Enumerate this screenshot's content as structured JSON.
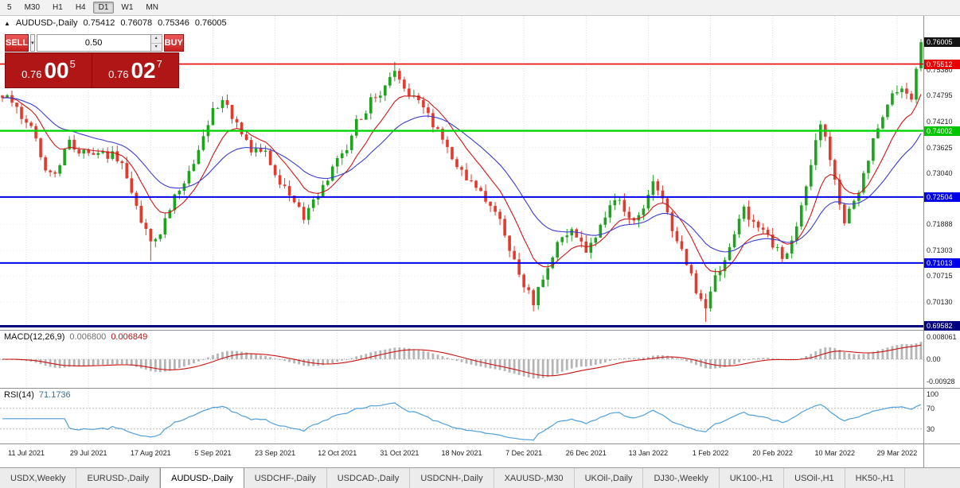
{
  "toolbar": {
    "timeframes": [
      "5",
      "M30",
      "H1",
      "H4",
      "D1",
      "W1",
      "MN"
    ],
    "active": "D1"
  },
  "header": {
    "marker": "▲",
    "title": "AUDUSD-,Daily",
    "open": "0.75412",
    "high": "0.76078",
    "low": "0.75346",
    "close": "0.76005"
  },
  "trade_panel": {
    "sell_label": "SELL",
    "buy_label": "BUY",
    "volume": "0.50",
    "dropdown_glyph": "▾",
    "spin_up_glyph": "▴",
    "spin_down_glyph": "▾",
    "sell_price": {
      "prefix": "0.76",
      "big": "00",
      "sup": "5"
    },
    "buy_price": {
      "prefix": "0.76",
      "big": "02",
      "sup": "7"
    }
  },
  "price_axis": {
    "grid_labels": [
      {
        "text": "0.75380",
        "price": 0.7538
      },
      {
        "text": "0.74795",
        "price": 0.74795
      },
      {
        "text": "0.74210",
        "price": 0.7421
      },
      {
        "text": "0.73625",
        "price": 0.73625
      },
      {
        "text": "0.73040",
        "price": 0.7304
      },
      {
        "text": "0.71888",
        "price": 0.71888
      },
      {
        "text": "0.71303",
        "price": 0.71303
      },
      {
        "text": "0.70715",
        "price": 0.70715
      },
      {
        "text": "0.70130",
        "price": 0.7013
      }
    ],
    "badges": [
      {
        "text": "0.76005",
        "price": 0.76005,
        "bg": "#141414"
      },
      {
        "text": "0.75512",
        "price": 0.75512,
        "bg": "#e80000"
      },
      {
        "text": "0.74002",
        "price": 0.74002,
        "bg": "#00c400"
      },
      {
        "text": "0.72504",
        "price": 0.72504,
        "bg": "#0000e8"
      },
      {
        "text": "0.71013",
        "price": 0.71013,
        "bg": "#0000e8"
      },
      {
        "text": "0.69582",
        "price": 0.69582,
        "bg": "#000080"
      }
    ]
  },
  "macd": {
    "name": "MACD(12,26,9)",
    "value_main": "0.006800",
    "value_signal": "0.006849",
    "axis": [
      "0.008061",
      "0.00",
      "-0.00928"
    ]
  },
  "rsi": {
    "name": "RSI(14)",
    "value": "71.1736",
    "axis": [
      "100",
      "70",
      "30"
    ],
    "levels": [
      70,
      30
    ]
  },
  "date_axis": {
    "labels": [
      "11 Jul 2021",
      "29 Jul 2021",
      "17 Aug 2021",
      "5 Sep 2021",
      "23 Sep 2021",
      "12 Oct 2021",
      "31 Oct 2021",
      "18 Nov 2021",
      "7 Dec 2021",
      "26 Dec 2021",
      "13 Jan 2022",
      "1 Feb 2022",
      "20 Feb 2022",
      "10 Mar 2022",
      "29 Mar 2022"
    ]
  },
  "tabs": {
    "items": [
      "USDX,Weekly",
      "EURUSD-,Daily",
      "AUDUSD-,Daily",
      "USDCHF-,Daily",
      "USDCAD-,Daily",
      "USDCNH-,Daily",
      "XAUUSD-,M30",
      "UKOil-,Daily",
      "DJ30-,Weekly",
      "UK100-,H1",
      "USOil-,H1",
      "HK50-,H1"
    ],
    "active": "AUDUSD-,Daily"
  },
  "chart_data": {
    "type": "candlestick",
    "symbol": "AUDUSD-",
    "timeframe": "Daily",
    "n_candles": 193,
    "price_range": [
      0.695,
      0.766
    ],
    "grid_start": 5,
    "grid_step": 13,
    "seed": 12,
    "noise": 0.0026,
    "wick": 0.0016,
    "ma_fast": 10,
    "ma_slow": 24,
    "macd_scale": [
      -0.0135,
      0.0135
    ],
    "rsi_scale": [
      2,
      108
    ],
    "anchors": [
      [
        0,
        0.748
      ],
      [
        3,
        0.7448
      ],
      [
        6,
        0.7398
      ],
      [
        9,
        0.7322
      ],
      [
        11,
        0.73
      ],
      [
        14,
        0.7378
      ],
      [
        17,
        0.7348
      ],
      [
        20,
        0.7362
      ],
      [
        23,
        0.7342
      ],
      [
        26,
        0.7302
      ],
      [
        29,
        0.7195
      ],
      [
        31,
        0.7138
      ],
      [
        33,
        0.7172
      ],
      [
        35,
        0.7228
      ],
      [
        38,
        0.7288
      ],
      [
        41,
        0.7358
      ],
      [
        44,
        0.7452
      ],
      [
        46,
        0.747
      ],
      [
        49,
        0.7422
      ],
      [
        52,
        0.7362
      ],
      [
        55,
        0.7345
      ],
      [
        58,
        0.7282
      ],
      [
        61,
        0.7245
      ],
      [
        63,
        0.7202
      ],
      [
        65,
        0.7235
      ],
      [
        68,
        0.7292
      ],
      [
        71,
        0.7345
      ],
      [
        74,
        0.7415
      ],
      [
        77,
        0.7468
      ],
      [
        80,
        0.7505
      ],
      [
        82,
        0.7528
      ],
      [
        85,
        0.7482
      ],
      [
        88,
        0.7445
      ],
      [
        91,
        0.7392
      ],
      [
        94,
        0.7348
      ],
      [
        97,
        0.7292
      ],
      [
        100,
        0.7255
      ],
      [
        103,
        0.7225
      ],
      [
        106,
        0.7138
      ],
      [
        109,
        0.7048
      ],
      [
        111,
        0.7008
      ],
      [
        113,
        0.7062
      ],
      [
        116,
        0.7145
      ],
      [
        119,
        0.7175
      ],
      [
        122,
        0.7132
      ],
      [
        125,
        0.7185
      ],
      [
        128,
        0.7255
      ],
      [
        131,
        0.7198
      ],
      [
        134,
        0.7232
      ],
      [
        136,
        0.7288
      ],
      [
        139,
        0.7218
      ],
      [
        142,
        0.7122
      ],
      [
        145,
        0.7038
      ],
      [
        147,
        0.6995
      ],
      [
        149,
        0.7062
      ],
      [
        152,
        0.7138
      ],
      [
        155,
        0.7225
      ],
      [
        158,
        0.7182
      ],
      [
        161,
        0.7148
      ],
      [
        163,
        0.7112
      ],
      [
        165,
        0.7152
      ],
      [
        168,
        0.7268
      ],
      [
        171,
        0.7415
      ],
      [
        174,
        0.7302
      ],
      [
        176,
        0.7188
      ],
      [
        179,
        0.7262
      ],
      [
        182,
        0.7382
      ],
      [
        185,
        0.7468
      ],
      [
        188,
        0.7505
      ],
      [
        190,
        0.7482
      ],
      [
        191,
        0.7532
      ],
      [
        192,
        0.76005
      ]
    ],
    "wick_lows": [
      [
        31,
        0.7106
      ],
      [
        111,
        0.6993
      ],
      [
        147,
        0.6968
      ]
    ],
    "wick_highs": [
      [
        46,
        0.7478
      ],
      [
        82,
        0.7556
      ],
      [
        191,
        0.754
      ]
    ],
    "last_candle": {
      "open": 0.75412,
      "high": 0.76078,
      "low": 0.75346,
      "close": 0.76005
    },
    "hlines": [
      {
        "price": 0.75512,
        "color": "#e80000",
        "width": 1.6
      },
      {
        "price": 0.74002,
        "color": "#00d400",
        "width": 2.4
      },
      {
        "price": 0.72504,
        "color": "#0000e8",
        "width": 2
      },
      {
        "price": 0.71013,
        "color": "#0000e8",
        "width": 2
      },
      {
        "price": 0.69582,
        "color": "#000080",
        "width": 3
      }
    ],
    "colors": {
      "up": "#1fa31f",
      "down": "#e23b2e",
      "ma_fast": "#cf1717",
      "ma_slow": "#3b3bd1",
      "macd_hist": "#b5b5b5",
      "macd_signal": "#cc1111",
      "rsi_line": "#4f9fd9"
    }
  }
}
